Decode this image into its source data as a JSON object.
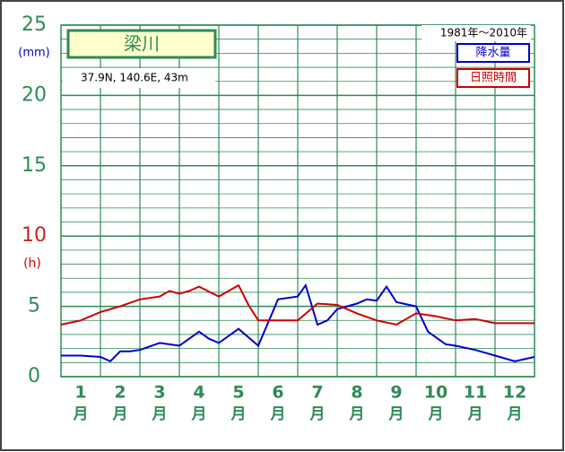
{
  "chart_data": {
    "type": "line",
    "title": "梁川",
    "subtitle": "37.9N,  140.6E,  43m",
    "period": "1981年～2010年",
    "ylabel_left": "(mm)",
    "ylabel_right": "(h)",
    "categories": [
      "1",
      "2",
      "3",
      "4",
      "5",
      "6",
      "7",
      "8",
      "9",
      "10",
      "11",
      "12"
    ],
    "category_unit": "月",
    "xlim": [
      0,
      12
    ],
    "ylim": [
      0,
      25
    ],
    "yticks": [
      0,
      5,
      10,
      15,
      20,
      25
    ],
    "ytick_colors": [
      "#2e8b57",
      "#2e8b57",
      "#cc2222",
      "#2e8b57",
      "#2e8b57",
      "#2e8b57"
    ],
    "minor_yticks": [
      1,
      2,
      3,
      4,
      6,
      7,
      8,
      9,
      11,
      12,
      13,
      14,
      16,
      17,
      18,
      19,
      21,
      22,
      23,
      24
    ],
    "grid": true,
    "series": [
      {
        "name": "降水量",
        "color": "#0000cc",
        "x": [
          0,
          0.5,
          1,
          1.25,
          1.5,
          1.75,
          2,
          2.5,
          3,
          3.5,
          3.75,
          4,
          4.5,
          5,
          5.5,
          6,
          6.2,
          6.5,
          6.75,
          7,
          7.5,
          7.75,
          8,
          8.25,
          8.5,
          9,
          9.3,
          9.75,
          10,
          10.5,
          11,
          11.5,
          12
        ],
        "values": [
          1.5,
          1.5,
          1.4,
          1.1,
          1.8,
          1.8,
          1.9,
          2.4,
          2.2,
          3.2,
          2.7,
          2.4,
          3.4,
          2.2,
          5.5,
          5.7,
          6.5,
          3.7,
          4.0,
          4.8,
          5.2,
          5.5,
          5.4,
          6.4,
          5.3,
          5.0,
          3.2,
          2.3,
          2.2,
          1.9,
          1.5,
          1.1,
          1.4
        ]
      },
      {
        "name": "日照時間",
        "color": "#cc0000",
        "x": [
          0,
          0.5,
          1,
          1.5,
          2,
          2.5,
          2.75,
          3,
          3.25,
          3.5,
          4,
          4.25,
          4.5,
          4.75,
          5,
          5.5,
          6,
          6.5,
          7,
          7.5,
          8,
          8.5,
          9,
          9.5,
          10,
          10.5,
          11,
          11.5,
          12
        ],
        "values": [
          3.7,
          4.0,
          4.6,
          5.0,
          5.5,
          5.7,
          6.1,
          5.9,
          6.1,
          6.4,
          5.7,
          6.1,
          6.5,
          5.1,
          4.0,
          4.0,
          4.0,
          5.2,
          5.1,
          4.5,
          4.0,
          3.7,
          4.5,
          4.3,
          4.0,
          4.1,
          3.8,
          3.8,
          3.8
        ]
      }
    ]
  }
}
